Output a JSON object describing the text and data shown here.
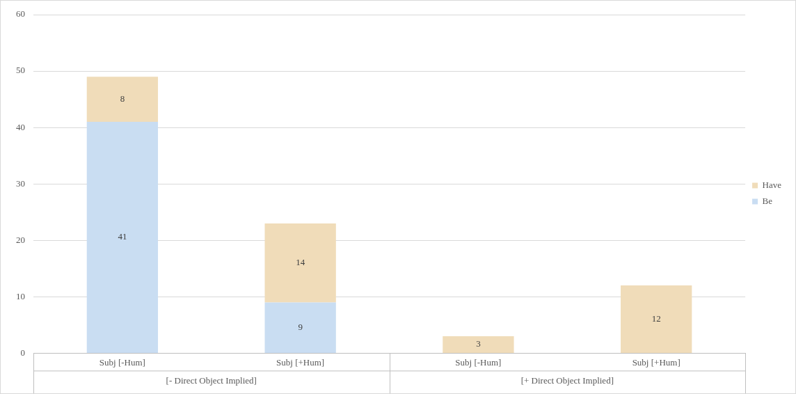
{
  "chart_data": {
    "type": "bar",
    "stacked": true,
    "categories": [
      "Subj [-Hum]",
      "Subj [+Hum]",
      "Subj [-Hum]",
      "Subj [+Hum]"
    ],
    "series": [
      {
        "name": "Be",
        "color": "#c9ddf2",
        "values": [
          41,
          9,
          null,
          null
        ]
      },
      {
        "name": "Have",
        "color": "#f0dcb9",
        "values": [
          8,
          14,
          3,
          12
        ]
      }
    ],
    "ylim": [
      0,
      60
    ],
    "yticks": [
      0,
      10,
      20,
      30,
      40,
      50,
      60
    ],
    "grid": "y",
    "legend": "right",
    "data_labels": true,
    "annotations": [
      "[- Direct Object Implied]",
      "[+ Direct Object Implied]"
    ]
  }
}
